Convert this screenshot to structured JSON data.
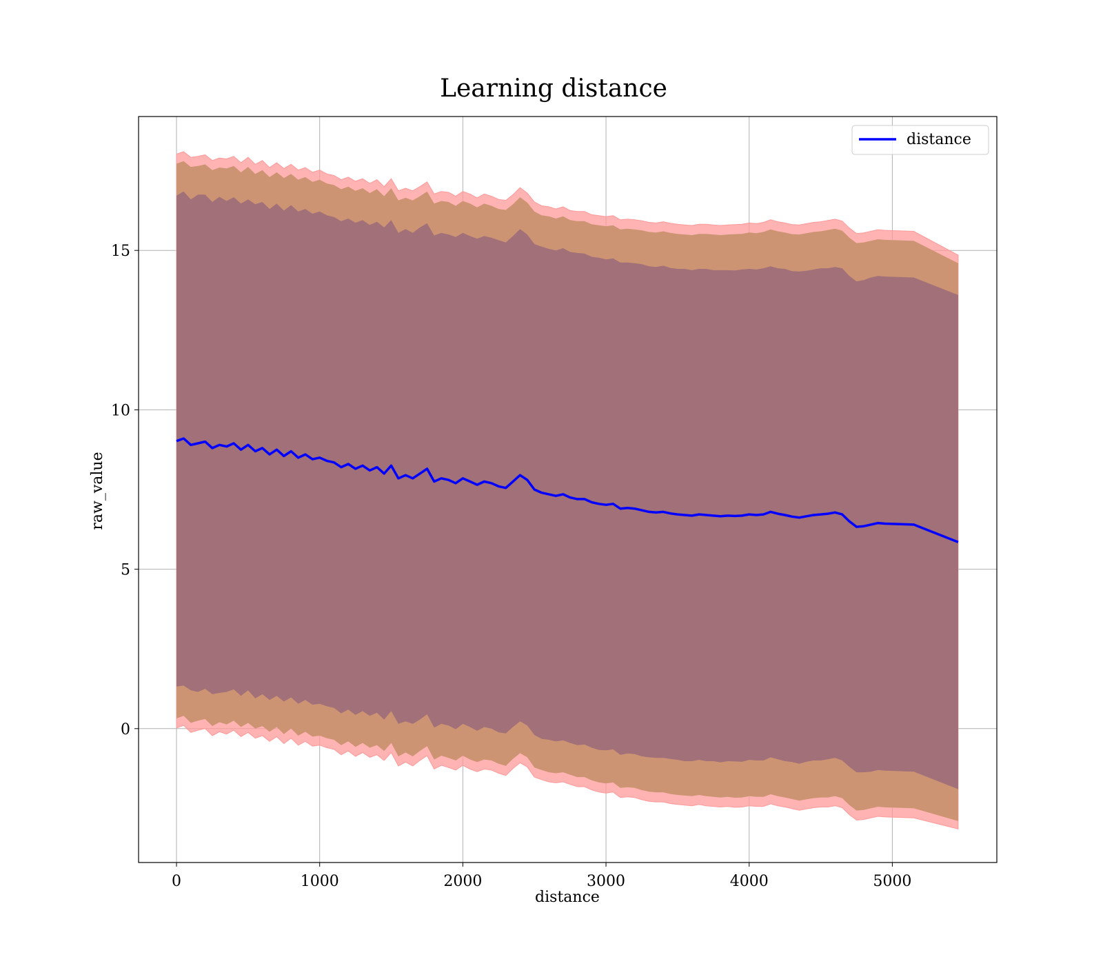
{
  "chart_data": {
    "type": "line",
    "title": "Learning distance",
    "xlabel": "distance",
    "ylabel": "raw_value",
    "xlim": [
      -265,
      5730
    ],
    "ylim": [
      -4.2,
      19.2
    ],
    "xticks": [
      0,
      1000,
      2000,
      3000,
      4000,
      5000
    ],
    "yticks": [
      0,
      5,
      10,
      15
    ],
    "xtick_labels": [
      "0",
      "1000",
      "2000",
      "3000",
      "4000",
      "5000"
    ],
    "ytick_labels": [
      "0",
      "5",
      "10",
      "15"
    ],
    "grid": true,
    "legend": {
      "position": "top-right",
      "entries": [
        "distance"
      ]
    },
    "series": [
      {
        "name": "distance",
        "color": "#0000ff",
        "x": [
          0,
          50,
          100,
          150,
          200,
          250,
          300,
          350,
          400,
          450,
          500,
          550,
          600,
          650,
          700,
          750,
          800,
          850,
          900,
          950,
          1000,
          1050,
          1100,
          1150,
          1200,
          1250,
          1300,
          1350,
          1400,
          1450,
          1500,
          1550,
          1600,
          1650,
          1700,
          1750,
          1800,
          1850,
          1900,
          1950,
          2000,
          2050,
          2100,
          2150,
          2200,
          2250,
          2300,
          2350,
          2400,
          2450,
          2500,
          2550,
          2600,
          2650,
          2700,
          2750,
          2800,
          2850,
          2900,
          2950,
          3000,
          3050,
          3100,
          3150,
          3200,
          3250,
          3300,
          3350,
          3400,
          3450,
          3500,
          3550,
          3600,
          3650,
          3700,
          3750,
          3800,
          3850,
          3900,
          3950,
          4000,
          4050,
          4100,
          4150,
          4200,
          4250,
          4300,
          4350,
          4400,
          4450,
          4500,
          4550,
          4600,
          4650,
          4700,
          4750,
          4800,
          4850,
          4900,
          4950,
          5150,
          5460
        ],
        "values": [
          9.02,
          9.1,
          8.9,
          8.95,
          9.0,
          8.8,
          8.9,
          8.85,
          8.95,
          8.75,
          8.9,
          8.7,
          8.8,
          8.6,
          8.75,
          8.55,
          8.7,
          8.5,
          8.6,
          8.45,
          8.5,
          8.4,
          8.35,
          8.2,
          8.3,
          8.15,
          8.25,
          8.1,
          8.2,
          8.0,
          8.25,
          7.85,
          7.95,
          7.85,
          8.0,
          8.15,
          7.75,
          7.85,
          7.8,
          7.7,
          7.85,
          7.75,
          7.65,
          7.75,
          7.7,
          7.6,
          7.55,
          7.75,
          7.95,
          7.8,
          7.5,
          7.4,
          7.35,
          7.3,
          7.35,
          7.25,
          7.2,
          7.2,
          7.1,
          7.05,
          7.02,
          7.05,
          6.9,
          6.92,
          6.9,
          6.85,
          6.8,
          6.78,
          6.8,
          6.75,
          6.72,
          6.7,
          6.68,
          6.72,
          6.7,
          6.68,
          6.66,
          6.68,
          6.67,
          6.68,
          6.72,
          6.7,
          6.72,
          6.8,
          6.74,
          6.7,
          6.65,
          6.62,
          6.66,
          6.7,
          6.72,
          6.74,
          6.78,
          6.72,
          6.5,
          6.33,
          6.35,
          6.4,
          6.45,
          6.43,
          6.4,
          5.85
        ],
        "std_inner": [
          7.7,
          7.75,
          7.7,
          7.8,
          7.75,
          7.72,
          7.78,
          7.7,
          7.72,
          7.72,
          7.7,
          7.75,
          7.72,
          7.7,
          7.72,
          7.7,
          7.72,
          7.72,
          7.7,
          7.7,
          7.72,
          7.7,
          7.7,
          7.72,
          7.7,
          7.72,
          7.7,
          7.7,
          7.7,
          7.72,
          7.7,
          7.7,
          7.72,
          7.7,
          7.72,
          7.7,
          7.72,
          7.7,
          7.7,
          7.72,
          7.7,
          7.7,
          7.72,
          7.7,
          7.7,
          7.72,
          7.7,
          7.7,
          7.72,
          7.7,
          7.7,
          7.72,
          7.7,
          7.7,
          7.72,
          7.7,
          7.72,
          7.7,
          7.7,
          7.72,
          7.7,
          7.7,
          7.72,
          7.7,
          7.7,
          7.72,
          7.7,
          7.7,
          7.72,
          7.7,
          7.7,
          7.72,
          7.7,
          7.7,
          7.72,
          7.7,
          7.72,
          7.7,
          7.7,
          7.72,
          7.7,
          7.7,
          7.72,
          7.7,
          7.7,
          7.72,
          7.7,
          7.72,
          7.7,
          7.7,
          7.72,
          7.7,
          7.7,
          7.72,
          7.7,
          7.7,
          7.72,
          7.75,
          7.75,
          7.75,
          7.75,
          7.75
        ],
        "std_mid": [
          8.7,
          8.7,
          8.72,
          8.7,
          8.7,
          8.72,
          8.7,
          8.72,
          8.7,
          8.7,
          8.72,
          8.7,
          8.72,
          8.7,
          8.7,
          8.72,
          8.7,
          8.72,
          8.7,
          8.7,
          8.72,
          8.7,
          8.7,
          8.72,
          8.7,
          8.72,
          8.7,
          8.7,
          8.72,
          8.7,
          8.7,
          8.72,
          8.7,
          8.72,
          8.7,
          8.7,
          8.72,
          8.7,
          8.72,
          8.7,
          8.7,
          8.72,
          8.7,
          8.72,
          8.7,
          8.7,
          8.72,
          8.7,
          8.72,
          8.7,
          8.72,
          8.7,
          8.72,
          8.7,
          8.72,
          8.7,
          8.72,
          8.72,
          8.72,
          8.74,
          8.74,
          8.74,
          8.76,
          8.76,
          8.76,
          8.78,
          8.78,
          8.78,
          8.8,
          8.8,
          8.8,
          8.8,
          8.8,
          8.8,
          8.82,
          8.82,
          8.82,
          8.82,
          8.84,
          8.84,
          8.84,
          8.84,
          8.86,
          8.86,
          8.86,
          8.86,
          8.86,
          8.88,
          8.88,
          8.88,
          8.88,
          8.9,
          8.9,
          8.9,
          8.9,
          8.9,
          8.9,
          8.9,
          8.9,
          8.9,
          8.9,
          8.75
        ],
        "std_outer": [
          9.0,
          9.0,
          9.02,
          9.0,
          9.0,
          9.02,
          9.0,
          9.02,
          9.0,
          9.0,
          9.02,
          9.0,
          9.02,
          9.0,
          9.0,
          9.02,
          9.0,
          9.02,
          9.0,
          9.0,
          9.02,
          9.0,
          9.0,
          9.02,
          9.0,
          9.02,
          9.0,
          9.0,
          9.02,
          9.0,
          9.0,
          9.02,
          9.0,
          9.02,
          9.0,
          9.0,
          9.02,
          9.0,
          9.02,
          9.0,
          9.0,
          9.02,
          9.0,
          9.02,
          9.0,
          9.0,
          9.02,
          9.0,
          9.02,
          9.0,
          9.02,
          9.0,
          9.02,
          9.0,
          9.02,
          9.0,
          9.02,
          9.02,
          9.02,
          9.04,
          9.04,
          9.04,
          9.06,
          9.06,
          9.06,
          9.08,
          9.08,
          9.08,
          9.1,
          9.1,
          9.1,
          9.1,
          9.1,
          9.1,
          9.12,
          9.12,
          9.12,
          9.12,
          9.14,
          9.14,
          9.14,
          9.14,
          9.16,
          9.16,
          9.16,
          9.16,
          9.16,
          9.18,
          9.18,
          9.18,
          9.18,
          9.2,
          9.2,
          9.2,
          9.2,
          9.2,
          9.2,
          9.2,
          9.2,
          9.2,
          9.2,
          9.0
        ]
      }
    ],
    "band_colors": {
      "outer": "#ff9999",
      "mid": "#cd9473",
      "inner": "#a17079",
      "line": "#0000ff"
    }
  }
}
